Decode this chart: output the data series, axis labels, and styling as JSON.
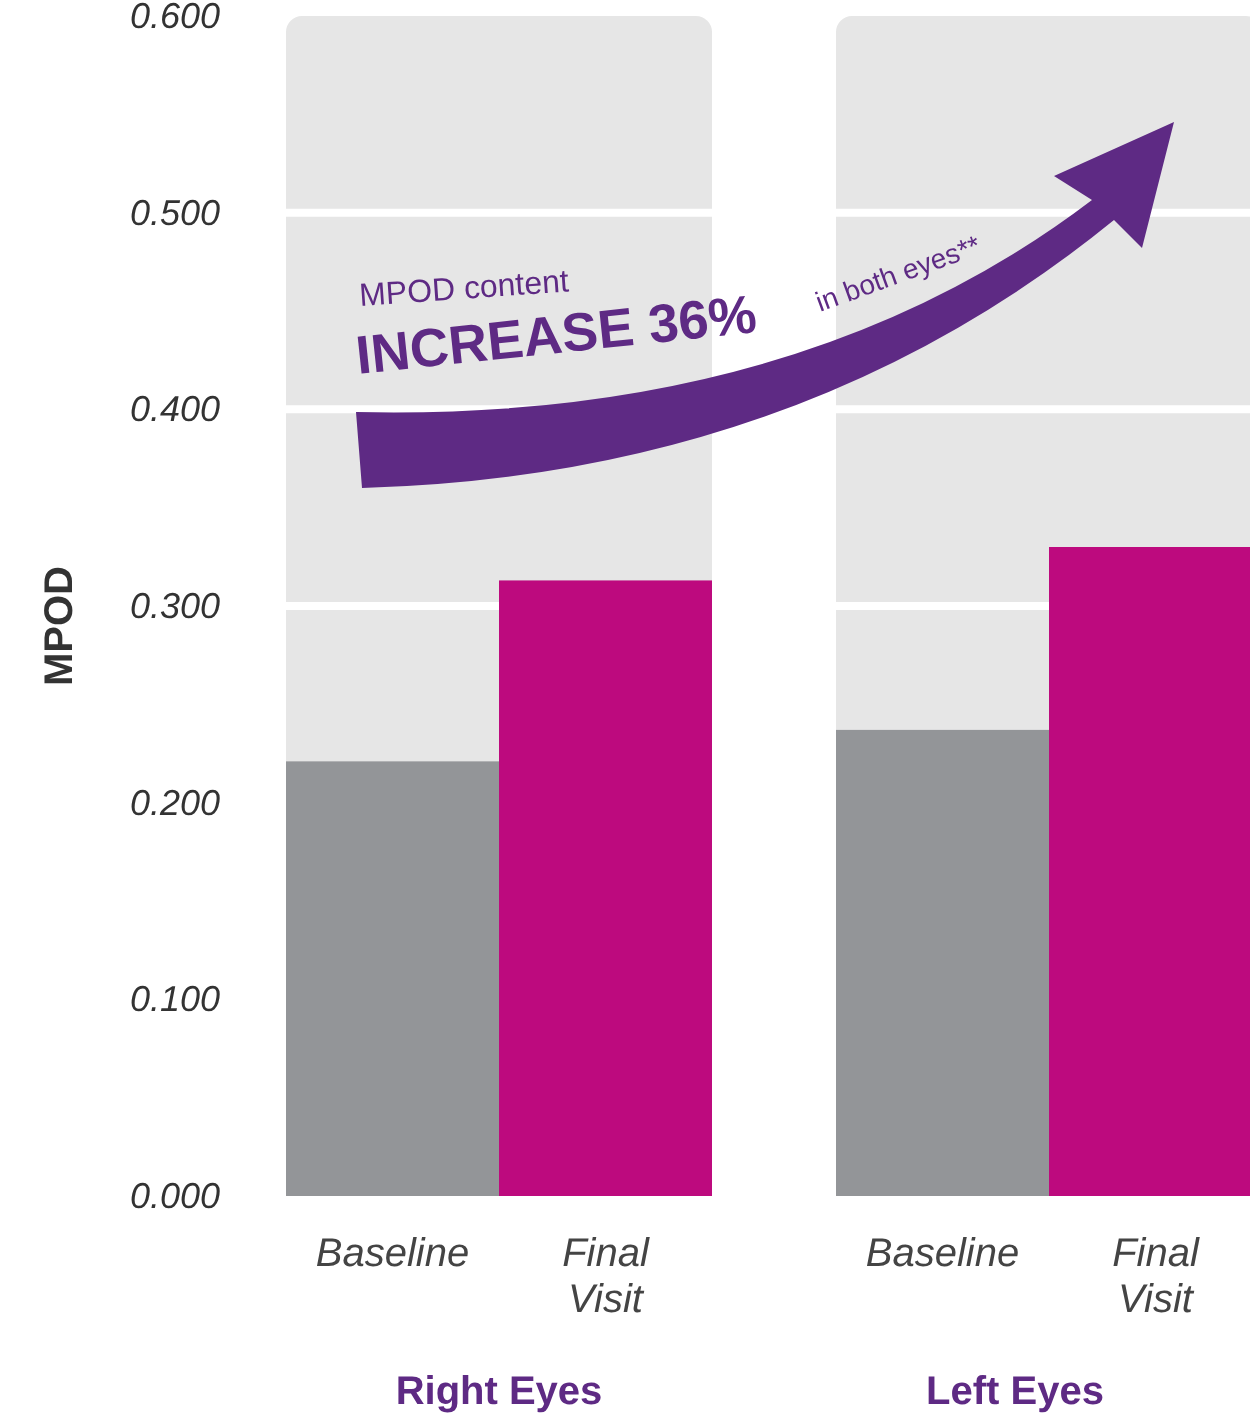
{
  "chart_data": [
    {
      "type": "bar",
      "xlabel": "Right Eyes",
      "ylabel": "MPOD",
      "categories": [
        "Baseline",
        "Final Visit"
      ],
      "values": [
        0.221,
        0.313
      ],
      "colors": [
        "#939598",
        "#bd0a7e"
      ],
      "ylim": [
        0,
        0.6
      ],
      "yticks": [
        {
          "value": 0,
          "label": "0.000"
        },
        {
          "value": 0.1,
          "label": "0.100"
        },
        {
          "value": 0.2,
          "label": "0.200"
        },
        {
          "value": 0.3,
          "label": "0.300"
        },
        {
          "value": 0.4,
          "label": "0.400"
        },
        {
          "value": 0.5,
          "label": "0.500"
        },
        {
          "value": 0.6,
          "label": "0.600"
        }
      ],
      "grid": "y",
      "annotations": [
        "MPOD content",
        "INCREASE 36%",
        "in both eyes**"
      ]
    },
    {
      "type": "bar",
      "xlabel": "Left Eyes",
      "categories": [
        "Baseline",
        "Final Visit"
      ],
      "values": [
        0.237,
        0.33
      ],
      "colors": [
        "#939598",
        "#bd0a7e"
      ],
      "ylim": [
        0,
        0.6
      ],
      "yticks": [
        0,
        0.1,
        0.2,
        0.3,
        0.4,
        0.5,
        0.6
      ],
      "grid": "y",
      "tick_labels": "x"
    }
  ]
}
